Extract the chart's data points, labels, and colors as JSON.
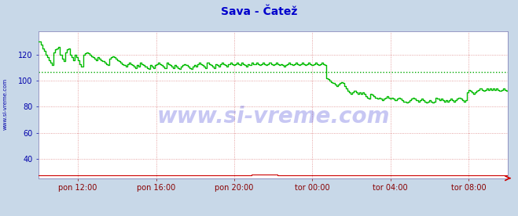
{
  "title": "Sava - Čatež",
  "title_color": "#0000cc",
  "title_fontsize": 10,
  "bg_color": "#c8d8e8",
  "plot_bg_color": "#ffffff",
  "grid_color": "#dd8888",
  "ylabel_color": "#0000aa",
  "xlabel_color": "#880000",
  "watermark": "www.si-vreme.com",
  "watermark_color": "#0000cc",
  "side_label": "www.si-vreme.com",
  "ylim": [
    25,
    138
  ],
  "yticks": [
    40,
    60,
    80,
    100,
    120
  ],
  "xtick_labels": [
    "pon 12:00",
    "pon 16:00",
    "pon 20:00",
    "tor 00:00",
    "tor 04:00",
    "tor 08:00"
  ],
  "n_points": 288,
  "pretok_color": "#00bb00",
  "temperatura_color": "#cc0000",
  "avg_line_color": "#00aa00",
  "avg_line_value": 107.0,
  "spine_color": "#8888bb",
  "arrow_color": "#cc0000",
  "pretok_data": [
    130,
    128,
    125,
    123,
    120,
    118,
    116,
    114,
    112,
    122,
    124,
    125,
    126,
    120,
    117,
    115,
    122,
    124,
    125,
    120,
    118,
    116,
    120,
    118,
    116,
    113,
    111,
    120,
    121,
    122,
    121,
    120,
    119,
    118,
    117,
    116,
    118,
    117,
    116,
    115,
    114,
    113,
    112,
    117,
    118,
    119,
    118,
    117,
    116,
    115,
    114,
    113,
    112,
    111,
    113,
    114,
    113,
    112,
    111,
    110,
    112,
    111,
    114,
    113,
    112,
    111,
    110,
    109,
    112,
    111,
    110,
    112,
    113,
    114,
    113,
    112,
    111,
    110,
    114,
    113,
    112,
    111,
    110,
    112,
    111,
    110,
    109,
    111,
    112,
    113,
    112,
    111,
    110,
    109,
    111,
    112,
    111,
    113,
    114,
    113,
    112,
    111,
    110,
    114,
    113,
    112,
    111,
    110,
    113,
    112,
    111,
    113,
    114,
    113,
    112,
    111,
    113,
    114,
    113,
    112,
    113,
    114,
    113,
    112,
    114,
    113,
    112,
    111,
    113,
    112,
    114,
    113,
    113,
    114,
    113,
    112,
    113,
    114,
    113,
    112,
    113,
    114,
    113,
    112,
    113,
    114,
    113,
    112,
    113,
    112,
    111,
    112,
    113,
    114,
    113,
    112,
    113,
    114,
    113,
    112,
    113,
    114,
    113,
    112,
    113,
    114,
    113,
    112,
    113,
    114,
    113,
    112,
    113,
    114,
    113,
    112,
    102,
    101,
    100,
    99,
    98,
    97,
    96,
    97,
    98,
    99,
    98,
    96,
    94,
    92,
    91,
    90,
    91,
    92,
    91,
    90,
    91,
    90,
    91,
    90,
    88,
    87,
    86,
    90,
    89,
    88,
    87,
    86,
    87,
    86,
    85,
    86,
    87,
    88,
    87,
    86,
    87,
    86,
    85,
    86,
    87,
    86,
    85,
    84,
    84,
    83,
    84,
    85,
    86,
    87,
    86,
    85,
    84,
    85,
    86,
    85,
    84,
    83,
    84,
    85,
    84,
    83,
    84,
    87,
    86,
    85,
    86,
    85,
    84,
    85,
    84,
    85,
    86,
    85,
    84,
    85,
    86,
    87,
    86,
    85,
    84,
    85,
    91,
    93,
    92,
    91,
    90,
    91,
    92,
    93,
    94,
    93,
    92,
    93,
    94,
    93,
    94,
    93,
    94,
    93,
    94,
    93,
    92,
    93,
    94,
    93,
    92,
    93
  ],
  "temperatura_data": [
    27,
    27,
    27,
    27,
    27,
    27,
    27,
    27,
    27,
    27,
    27,
    27,
    27,
    27,
    27,
    27,
    27,
    27,
    27,
    27,
    27,
    27,
    27,
    27,
    27,
    27,
    27,
    27,
    27,
    27,
    27,
    27,
    27,
    27,
    27,
    27,
    27,
    27,
    27,
    27,
    27,
    27,
    27,
    27,
    27,
    27,
    27,
    27,
    27,
    27,
    27,
    27,
    27,
    27,
    27,
    27,
    27,
    27,
    27,
    27,
    27,
    27,
    27,
    27,
    27,
    27,
    27,
    27,
    27,
    27,
    27,
    27,
    27,
    27,
    27,
    27,
    27,
    27,
    27,
    27,
    27,
    27,
    27,
    27,
    27,
    27,
    27,
    27,
    27,
    27,
    27,
    27,
    27,
    27,
    27,
    27,
    27,
    27,
    27,
    27,
    27,
    27,
    27,
    27,
    27,
    27,
    27,
    27,
    27,
    27,
    27,
    27,
    27,
    27,
    27,
    27,
    27,
    27,
    27,
    27,
    27,
    27,
    27,
    27,
    27,
    27,
    27,
    27,
    27,
    27,
    28,
    28,
    28,
    28,
    28,
    28,
    28,
    28,
    28,
    28,
    28,
    28,
    28,
    28,
    28,
    28,
    27,
    27,
    27,
    27,
    27,
    27,
    27,
    27,
    27,
    27,
    27,
    27,
    27,
    27,
    27,
    27,
    27,
    27,
    27,
    27,
    27,
    27,
    27,
    27,
    27,
    27,
    27,
    27,
    27,
    27,
    27,
    27,
    27,
    27,
    27,
    27,
    27,
    27,
    27,
    27,
    27,
    27,
    27,
    27,
    27,
    27,
    27,
    27,
    27,
    27,
    27,
    27,
    27,
    27,
    27,
    27,
    27,
    27,
    27,
    27,
    27,
    27,
    27,
    27,
    27,
    27,
    27,
    27,
    27,
    27,
    27,
    27,
    27,
    27,
    27,
    27,
    27,
    27,
    27,
    27,
    27,
    27,
    27,
    27,
    27,
    27,
    27,
    27,
    27,
    27,
    27,
    27,
    27,
    27,
    27,
    27,
    27,
    27,
    27,
    27,
    27,
    27,
    27,
    27,
    27,
    27,
    27,
    27,
    27,
    27,
    27,
    27,
    27,
    27,
    27,
    27,
    27,
    27,
    27,
    27,
    27,
    27,
    27,
    27,
    27,
    27,
    27,
    27,
    27,
    27,
    27,
    27,
    27,
    27,
    27,
    27,
    27,
    27,
    27,
    27,
    27,
    27
  ]
}
